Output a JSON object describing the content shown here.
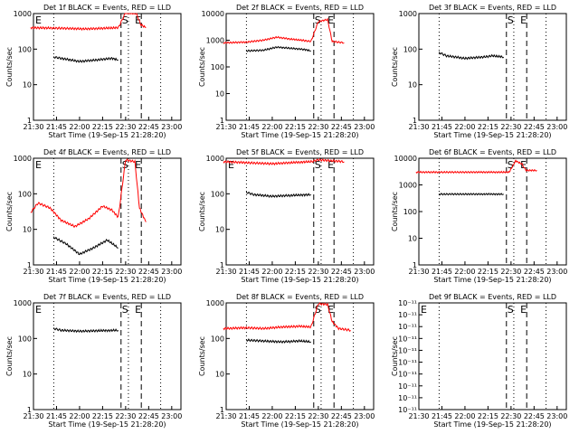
{
  "xlabel": "Start Time (19-Sep-15 21:28:20)",
  "ylabel": "Counts/sec",
  "x_ticks": [
    "21:30",
    "21:45",
    "22:00",
    "22:15",
    "22:30",
    "22:45",
    "23:00"
  ],
  "chart_data": [
    {
      "type": "line",
      "title": "Det 1f BLACK = Events, RED = LLD",
      "y_scale": "log",
      "ylim": [
        1,
        1000
      ],
      "y_ticks": [
        "1",
        "10",
        "100",
        "1000"
      ],
      "markers": [
        "E",
        "S",
        "E"
      ],
      "series": [
        {
          "color": "#ff0000",
          "values": [
            [
              21.47,
              400
            ],
            [
              21.72,
              390
            ],
            [
              21.9,
              380
            ],
            [
              22.05,
              370
            ],
            [
              22.2,
              380
            ],
            [
              22.3,
              390
            ],
            [
              22.42,
              400
            ],
            [
              22.5,
              1050
            ],
            [
              22.62,
              1000
            ],
            [
              22.66,
              500
            ],
            [
              22.72,
              400
            ]
          ]
        },
        {
          "color": "#000000",
          "values": [
            [
              21.72,
              60
            ],
            [
              21.8,
              55
            ],
            [
              22.0,
              45
            ],
            [
              22.2,
              50
            ],
            [
              22.35,
              55
            ],
            [
              22.42,
              50
            ]
          ]
        }
      ]
    },
    {
      "type": "line",
      "title": "Det 2f BLACK = Events, RED = LLD",
      "y_scale": "log",
      "ylim": [
        1,
        10000
      ],
      "y_ticks": [
        "1",
        "10",
        "100",
        "1000",
        "10000"
      ],
      "markers": [
        "S",
        "E"
      ],
      "series": [
        {
          "color": "#ff0000",
          "values": [
            [
              21.47,
              800
            ],
            [
              21.72,
              850
            ],
            [
              21.9,
              1000
            ],
            [
              22.05,
              1300
            ],
            [
              22.2,
              1100
            ],
            [
              22.32,
              1000
            ],
            [
              22.42,
              900
            ],
            [
              22.5,
              5000
            ],
            [
              22.6,
              6000
            ],
            [
              22.65,
              900
            ],
            [
              22.78,
              800
            ]
          ]
        },
        {
          "color": "#000000",
          "values": [
            [
              21.72,
              400
            ],
            [
              21.9,
              420
            ],
            [
              22.05,
              550
            ],
            [
              22.2,
              500
            ],
            [
              22.35,
              450
            ],
            [
              22.42,
              400
            ]
          ]
        }
      ]
    },
    {
      "type": "line",
      "title": "Det 3f BLACK = Events, RED = LLD",
      "y_scale": "log",
      "ylim": [
        1,
        1000
      ],
      "y_ticks": [
        "1",
        "10",
        "100",
        "1000"
      ],
      "markers": [
        "S",
        "E"
      ],
      "series": [
        {
          "color": "#000000",
          "values": [
            [
              21.72,
              80
            ],
            [
              21.8,
              65
            ],
            [
              22.0,
              55
            ],
            [
              22.2,
              60
            ],
            [
              22.3,
              65
            ],
            [
              22.42,
              60
            ]
          ]
        }
      ]
    },
    {
      "type": "line",
      "title": "Det 4f BLACK = Events, RED = LLD",
      "y_scale": "log",
      "ylim": [
        1,
        1000
      ],
      "y_ticks": [
        "1",
        "10",
        "100",
        "1000"
      ],
      "markers": [
        "E",
        "S",
        "E"
      ],
      "series": [
        {
          "color": "#ff0000",
          "values": [
            [
              21.47,
              30
            ],
            [
              21.55,
              55
            ],
            [
              21.68,
              40
            ],
            [
              21.8,
              18
            ],
            [
              21.95,
              12
            ],
            [
              22.1,
              20
            ],
            [
              22.25,
              45
            ],
            [
              22.35,
              35
            ],
            [
              22.42,
              22
            ],
            [
              22.5,
              900
            ],
            [
              22.6,
              800
            ],
            [
              22.65,
              40
            ],
            [
              22.72,
              16
            ]
          ]
        },
        {
          "color": "#000000",
          "values": [
            [
              21.72,
              6
            ],
            [
              21.85,
              4
            ],
            [
              22.0,
              2
            ],
            [
              22.15,
              3
            ],
            [
              22.3,
              5
            ],
            [
              22.42,
              3
            ]
          ]
        }
      ]
    },
    {
      "type": "line",
      "title": "Det 5f BLACK = Events, RED = LLD",
      "y_scale": "log",
      "ylim": [
        1,
        1000
      ],
      "y_ticks": [
        "1",
        "10",
        "100",
        "1000"
      ],
      "markers": [
        "E",
        "S",
        "E"
      ],
      "series": [
        {
          "color": "#ff0000",
          "values": [
            [
              21.47,
              800
            ],
            [
              21.72,
              750
            ],
            [
              22.0,
              700
            ],
            [
              22.2,
              750
            ],
            [
              22.42,
              800
            ],
            [
              22.5,
              900
            ],
            [
              22.78,
              800
            ]
          ]
        },
        {
          "color": "#000000",
          "values": [
            [
              21.72,
              110
            ],
            [
              21.8,
              95
            ],
            [
              22.0,
              85
            ],
            [
              22.2,
              90
            ],
            [
              22.42,
              95
            ]
          ]
        }
      ]
    },
    {
      "type": "line",
      "title": "Det 6f BLACK = Events, RED = LLD",
      "y_scale": "log",
      "ylim": [
        1,
        10000
      ],
      "y_ticks": [
        "1",
        "10",
        "100",
        "1000",
        "10000"
      ],
      "markers": [
        "S",
        "E"
      ],
      "series": [
        {
          "color": "#ff0000",
          "values": [
            [
              21.47,
              3000
            ],
            [
              21.72,
              3000
            ],
            [
              22.1,
              3000
            ],
            [
              22.42,
              3000
            ],
            [
              22.48,
              3000
            ],
            [
              22.55,
              8000
            ],
            [
              22.62,
              6000
            ],
            [
              22.66,
              3500
            ],
            [
              22.78,
              3500
            ]
          ]
        },
        {
          "color": "#000000",
          "values": [
            [
              21.72,
              450
            ],
            [
              22.0,
              450
            ],
            [
              22.2,
              450
            ],
            [
              22.42,
              450
            ]
          ]
        }
      ]
    },
    {
      "type": "line",
      "title": "Det 7f BLACK = Events, RED = LLD",
      "y_scale": "log",
      "ylim": [
        1,
        1000
      ],
      "y_ticks": [
        "1",
        "10",
        "100",
        "1000"
      ],
      "markers": [
        "E",
        "S",
        "E"
      ],
      "series": [
        {
          "color": "#000000",
          "values": [
            [
              21.72,
              190
            ],
            [
              21.8,
              170
            ],
            [
              22.0,
              160
            ],
            [
              22.2,
              165
            ],
            [
              22.42,
              170
            ]
          ]
        }
      ]
    },
    {
      "type": "line",
      "title": "Det 8f BLACK = Events, RED = LLD",
      "y_scale": "log",
      "ylim": [
        1,
        1000
      ],
      "y_ticks": [
        "1",
        "10",
        "100",
        "1000"
      ],
      "markers": [
        "S",
        "E"
      ],
      "series": [
        {
          "color": "#ff0000",
          "values": [
            [
              21.47,
              190
            ],
            [
              21.72,
              200
            ],
            [
              21.9,
              190
            ],
            [
              22.1,
              210
            ],
            [
              22.3,
              220
            ],
            [
              22.42,
              210
            ],
            [
              22.5,
              950
            ],
            [
              22.6,
              900
            ],
            [
              22.65,
              300
            ],
            [
              22.72,
              190
            ],
            [
              22.85,
              170
            ]
          ]
        },
        {
          "color": "#000000",
          "values": [
            [
              21.72,
              90
            ],
            [
              21.9,
              85
            ],
            [
              22.1,
              80
            ],
            [
              22.3,
              85
            ],
            [
              22.42,
              80
            ]
          ]
        }
      ]
    },
    {
      "type": "line",
      "title": "Det 9f BLACK = Events, RED = LLD",
      "y_scale": "log",
      "ylim": [
        1e-11,
        1e-10
      ],
      "y_ticks": [
        "10⁻¹¹",
        "10⁻¹¹",
        "10⁻¹¹",
        "10⁻¹¹",
        "10⁻¹¹",
        "10⁻¹¹",
        "10⁻¹¹",
        "10⁻¹¹",
        "10⁻¹¹",
        "10⁻¹¹"
      ],
      "markers": [
        "E",
        "S",
        "E"
      ],
      "series": []
    }
  ]
}
